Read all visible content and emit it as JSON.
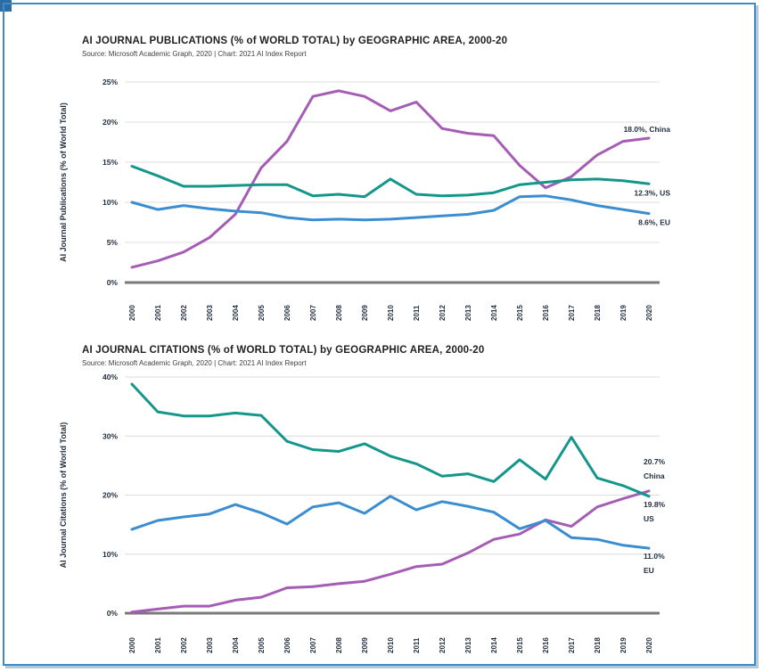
{
  "page": {
    "frame_color": "#3e8cc7",
    "corner_color": "#2e6da4",
    "background": "#ffffff"
  },
  "palette": {
    "china": "#a55cb5",
    "us": "#15968b",
    "eu": "#3b8dd1",
    "grid": "#dcdcdc",
    "axis": "#7a7a7a",
    "tick_text": "#1f2d3d"
  },
  "chart_data": [
    {
      "id": "publications",
      "type": "line",
      "title": "AI JOURNAL PUBLICATIONS (% of WORLD TOTAL) by GEOGRAPHIC AREA, 2000-20",
      "source": "Source: Microsoft Academic Graph, 2020 | Chart: 2021 AI Index Report",
      "ylabel": "AI Journal Publications (% of World Total)",
      "ylim": [
        0,
        25
      ],
      "ytick_step": 5,
      "ytick_labels": [
        "0%",
        "5%",
        "10%",
        "15%",
        "20%",
        "25%"
      ],
      "grid": true,
      "legend_position": "end-labels-right",
      "x": [
        "2000",
        "2001",
        "2002",
        "2003",
        "2004",
        "2005",
        "2006",
        "2007",
        "2008",
        "2009",
        "2010",
        "2011",
        "2012",
        "2013",
        "2014",
        "2015",
        "2016",
        "2017",
        "2018",
        "2019",
        "2020"
      ],
      "series": [
        {
          "name": "China",
          "color": "#a55cb5",
          "values": [
            1.9,
            2.7,
            3.8,
            5.6,
            8.5,
            14.3,
            17.6,
            23.2,
            23.9,
            23.2,
            21.4,
            22.5,
            19.2,
            18.6,
            18.3,
            14.6,
            11.8,
            13.2,
            15.9,
            17.6,
            18.0
          ],
          "label_lines": [
            "18.0%, China"
          ],
          "label_position": "above"
        },
        {
          "name": "US",
          "color": "#15968b",
          "values": [
            14.5,
            13.3,
            12.0,
            12.0,
            12.1,
            12.2,
            12.2,
            10.8,
            11.0,
            10.7,
            12.9,
            11.0,
            10.8,
            10.9,
            11.2,
            12.2,
            12.5,
            12.8,
            12.9,
            12.7,
            12.3
          ],
          "label_lines": [
            "12.3%, US"
          ],
          "label_position": "below"
        },
        {
          "name": "EU",
          "color": "#3b8dd1",
          "values": [
            10.0,
            9.1,
            9.6,
            9.2,
            8.9,
            8.7,
            8.1,
            7.8,
            7.9,
            7.8,
            7.9,
            8.1,
            8.3,
            8.5,
            9.0,
            10.7,
            10.8,
            10.3,
            9.6,
            9.1,
            8.6
          ],
          "label_lines": [
            "8.6%, EU"
          ],
          "label_position": "below"
        }
      ]
    },
    {
      "id": "citations",
      "type": "line",
      "title": "AI JOURNAL CITATIONS (% of WORLD TOTAL) by GEOGRAPHIC AREA, 2000-20",
      "source": "Source: Microsoft Academic Graph, 2020 | Chart: 2021 AI Index Report",
      "ylabel": "AI Journal Citations (% of World Total)",
      "ylim": [
        0,
        40
      ],
      "ytick_step": 10,
      "ytick_labels": [
        "0%",
        "10%",
        "20%",
        "30%",
        "40%"
      ],
      "grid": true,
      "legend_position": "end-labels-right",
      "x": [
        "2000",
        "2001",
        "2002",
        "2003",
        "2004",
        "2005",
        "2006",
        "2007",
        "2008",
        "2009",
        "2010",
        "2011",
        "2012",
        "2013",
        "2014",
        "2015",
        "2016",
        "2017",
        "2018",
        "2019",
        "2020"
      ],
      "series": [
        {
          "name": "China",
          "color": "#a55cb5",
          "values": [
            0.2,
            0.7,
            1.2,
            1.2,
            2.2,
            2.7,
            4.3,
            4.5,
            5.0,
            5.4,
            6.6,
            7.9,
            8.3,
            10.2,
            12.5,
            13.4,
            15.8,
            14.7,
            18.0,
            19.4,
            20.7
          ],
          "label_lines": [
            "20.7%",
            "China"
          ],
          "label_position": "above"
        },
        {
          "name": "US",
          "color": "#15968b",
          "values": [
            38.8,
            34.1,
            33.4,
            33.4,
            33.9,
            33.5,
            29.1,
            27.7,
            27.4,
            28.7,
            26.6,
            25.3,
            23.2,
            23.6,
            22.3,
            26.0,
            22.7,
            29.8,
            22.9,
            21.6,
            19.8
          ],
          "label_lines": [
            "19.8%",
            "US"
          ],
          "label_position": "below"
        },
        {
          "name": "EU",
          "color": "#3b8dd1",
          "values": [
            14.2,
            15.7,
            16.3,
            16.8,
            18.4,
            17.0,
            15.1,
            18.0,
            18.7,
            16.9,
            19.8,
            17.5,
            18.9,
            18.1,
            17.1,
            14.3,
            15.7,
            12.8,
            12.5,
            11.5,
            11.0
          ],
          "label_lines": [
            "11.0%",
            "EU"
          ],
          "label_position": "below"
        }
      ]
    }
  ]
}
